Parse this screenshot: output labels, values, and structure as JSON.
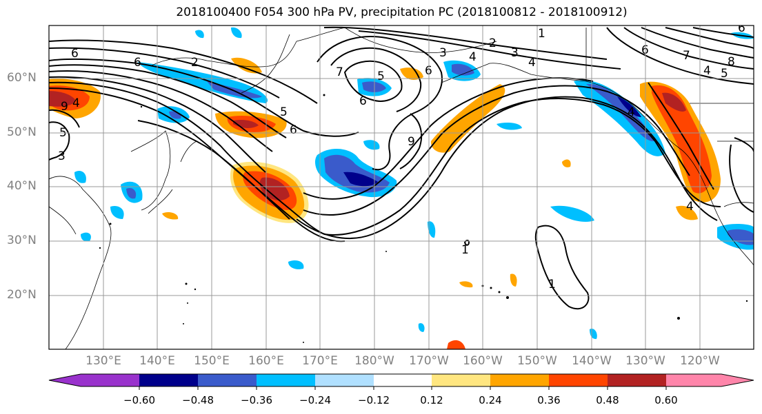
{
  "title": "2018100400 F054 300 hPa PV, precipitation PC (2018100812 - 2018100912)",
  "lat_labels": [
    "60°N",
    "50°N",
    "40°N",
    "30°N",
    "20°N"
  ],
  "lon_labels": [
    "130°E",
    "140°E",
    "150°E",
    "160°E",
    "170°E",
    "180°W",
    "170°W",
    "160°W",
    "150°W",
    "140°W",
    "130°W",
    "120°W"
  ],
  "contour_labels": [
    "1",
    "2",
    "3",
    "4",
    "5",
    "6",
    "7",
    "8",
    "9"
  ],
  "colorbar": {
    "ticks": [
      "−0.60",
      "−0.48",
      "−0.36",
      "−0.24",
      "−0.12",
      "0.12",
      "0.24",
      "0.36",
      "0.48",
      "0.60"
    ],
    "colors": [
      "#9932CC",
      "#00008B",
      "#3A5BCB",
      "#00BFFF",
      "#B0E0FF",
      "#FFFFFF",
      "#FFE680",
      "#FFA500",
      "#FF4500",
      "#B22222",
      "#FF85AA"
    ]
  }
}
